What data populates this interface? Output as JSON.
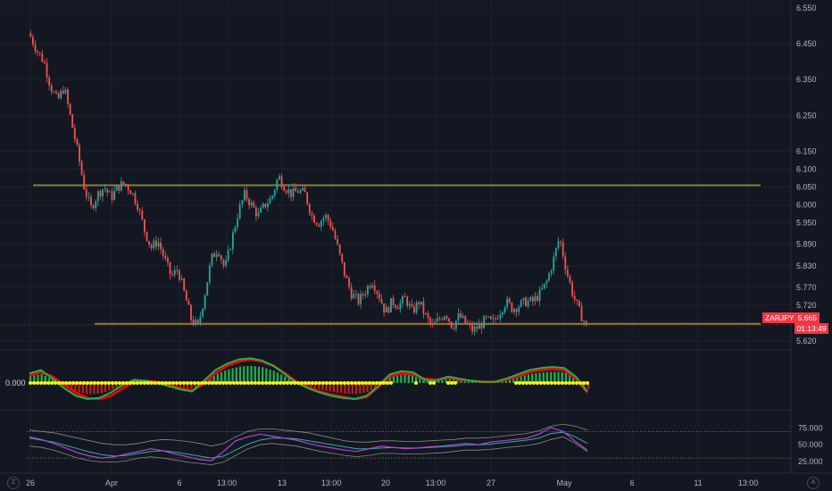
{
  "symbol": "ZARJPY",
  "last_price": "5.665",
  "countdown": "01:13:49",
  "osc_zero_label": "0.000",
  "corner_left_icon": "Z",
  "corner_right_icon": "A",
  "colors": {
    "background": "#131722",
    "bull": "#26a69a",
    "bear": "#ef5350",
    "level": "#8a7d3a",
    "dots": "#ffff00",
    "osc_green": "#22b14c",
    "osc_red": "#ff0000",
    "rsi_purple": "#b344d6",
    "rsi_grey": "#787b86"
  },
  "chart_data": [
    {
      "type": "candlestick",
      "pane": "price",
      "symbol": "ZARJPY",
      "y_ticks": [
        "6.550",
        "6.450",
        "6.350",
        "6.250",
        "6.150",
        "6.100",
        "6.050",
        "6.000",
        "5.950",
        "5.890",
        "5.830",
        "5.770",
        "5.720",
        "5.620"
      ],
      "ylim": [
        5.6,
        6.56
      ],
      "x_ticks": [
        "26",
        "Apr",
        "6",
        "13:00",
        "13",
        "13:00",
        "20",
        "13:00",
        "27",
        "May",
        "6",
        "11",
        "13:00"
      ],
      "horizontal_levels": [
        6.055,
        5.668
      ],
      "last_price": 5.665,
      "close_path": [
        6.47,
        6.43,
        6.4,
        6.33,
        6.29,
        6.33,
        6.24,
        6.15,
        6.05,
        5.99,
        6.03,
        6.05,
        6.02,
        6.05,
        6.06,
        6.04,
        6.0,
        5.93,
        5.88,
        5.9,
        5.85,
        5.8,
        5.82,
        5.75,
        5.68,
        5.66,
        5.75,
        5.85,
        5.88,
        5.82,
        5.9,
        5.98,
        6.03,
        6.0,
        5.97,
        6.0,
        6.02,
        6.08,
        6.05,
        6.03,
        6.04,
        6.03,
        5.97,
        5.95,
        5.97,
        5.94,
        5.87,
        5.8,
        5.75,
        5.73,
        5.76,
        5.79,
        5.75,
        5.7,
        5.73,
        5.72,
        5.74,
        5.7,
        5.73,
        5.69,
        5.66,
        5.68,
        5.7,
        5.66,
        5.69,
        5.67,
        5.65,
        5.66,
        5.68,
        5.67,
        5.7,
        5.73,
        5.71,
        5.72,
        5.73,
        5.73,
        5.75,
        5.78,
        5.84,
        5.91,
        5.82,
        5.75,
        5.7,
        5.665
      ]
    },
    {
      "type": "histogram",
      "pane": "oscillator",
      "zero_label": "0.000",
      "green_line_path": [
        0.9,
        1.2,
        0.4,
        -0.5,
        -1.2,
        -1.5,
        -1.4,
        -0.9,
        -0.2,
        0.3,
        0.2,
        0,
        -0.3,
        -0.6,
        -0.8,
        0.2,
        1.2,
        1.8,
        2.2,
        2.3,
        2.1,
        1.6,
        0.8,
        0,
        -0.5,
        -0.9,
        -1.2,
        -1.4,
        -1.5,
        -1.2,
        -0.3,
        0.8,
        1.1,
        1.0,
        0.3,
        0.2,
        0.6,
        0.4,
        0.2,
        0.1,
        0.1,
        0.4,
        0.8,
        1.2,
        1.4,
        1.5,
        1.4,
        0.6,
        -0.8
      ],
      "red_line_path": [
        0.7,
        1.0,
        0.6,
        -0.2,
        -0.9,
        -1.4,
        -1.5,
        -1.2,
        -0.5,
        0.1,
        0.2,
        0.1,
        -0.2,
        -0.5,
        -0.7,
        -0.1,
        0.9,
        1.6,
        2.0,
        2.2,
        2.0,
        1.6,
        0.9,
        0.1,
        -0.4,
        -0.8,
        -1.1,
        -1.3,
        -1.5,
        -1.3,
        -0.4,
        0.6,
        0.9,
        0.8,
        0.4,
        0.3,
        0.5,
        0.3,
        0.2,
        0.1,
        0.1,
        0.3,
        0.6,
        1.0,
        1.2,
        1.3,
        1.2,
        0.4,
        -0.9
      ]
    },
    {
      "type": "line",
      "pane": "rsi",
      "y_ticks": [
        "75.000",
        "50.000",
        "25.000"
      ],
      "ylim": [
        10,
        100
      ],
      "bands": [
        70,
        30
      ],
      "rsi_path": [
        62,
        58,
        52,
        45,
        38,
        33,
        30,
        32,
        36,
        40,
        44,
        41,
        36,
        32,
        28,
        26,
        40,
        56,
        62,
        66,
        63,
        60,
        57,
        52,
        48,
        45,
        42,
        40,
        44,
        48,
        46,
        44,
        45,
        47,
        48,
        50,
        52,
        50,
        54,
        56,
        58,
        60,
        66,
        76,
        70,
        55,
        42
      ],
      "signal_path": [
        60,
        57,
        54,
        49,
        44,
        39,
        35,
        33,
        34,
        37,
        40,
        41,
        39,
        36,
        33,
        30,
        33,
        42,
        51,
        57,
        60,
        60,
        59,
        56,
        53,
        50,
        47,
        44,
        44,
        45,
        46,
        45,
        45,
        46,
        47,
        48,
        50,
        50,
        51,
        53,
        55,
        57,
        60,
        67,
        69,
        62,
        52
      ],
      "upper_band_path": [
        72,
        70,
        68,
        64,
        60,
        56,
        52,
        50,
        50,
        52,
        56,
        58,
        57,
        55,
        52,
        48,
        52,
        62,
        70,
        74,
        74,
        72,
        70,
        68,
        64,
        60,
        56,
        54,
        54,
        56,
        56,
        55,
        55,
        56,
        57,
        58,
        60,
        60,
        61,
        63,
        65,
        67,
        71,
        78,
        81,
        78,
        72
      ],
      "lower_band_path": [
        48,
        46,
        42,
        36,
        30,
        26,
        24,
        24,
        26,
        30,
        32,
        30,
        27,
        24,
        22,
        20,
        24,
        34,
        44,
        50,
        52,
        50,
        48,
        44,
        40,
        37,
        34,
        32,
        34,
        37,
        37,
        36,
        36,
        37,
        38,
        40,
        42,
        42,
        43,
        45,
        47,
        49,
        52,
        58,
        62,
        52,
        40
      ]
    }
  ]
}
